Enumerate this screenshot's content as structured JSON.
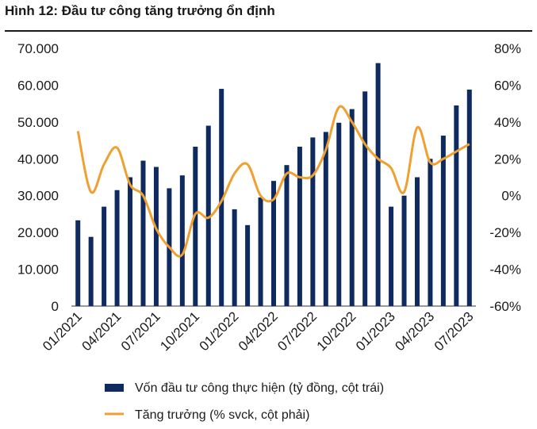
{
  "title": "Hình 12: Đầu tư công tăng trưởng ổn định",
  "chart_data": {
    "type": "bar",
    "x": [
      "01/2021",
      "02/2021",
      "03/2021",
      "04/2021",
      "05/2021",
      "06/2021",
      "07/2021",
      "08/2021",
      "09/2021",
      "10/2021",
      "11/2021",
      "12/2021",
      "01/2022",
      "02/2022",
      "03/2022",
      "04/2022",
      "05/2022",
      "06/2022",
      "07/2022",
      "08/2022",
      "09/2022",
      "10/2022",
      "11/2022",
      "12/2022",
      "01/2023",
      "02/2023",
      "03/2023",
      "04/2023",
      "05/2023",
      "06/2023",
      "07/2023"
    ],
    "x_tick_labels": [
      "01/2021",
      "04/2021",
      "07/2021",
      "10/2021",
      "01/2022",
      "04/2022",
      "07/2022",
      "10/2022",
      "01/2023",
      "04/2023",
      "07/2023"
    ],
    "y_left_ticks": [
      "0",
      "10.000",
      "20.000",
      "30.000",
      "40.000",
      "50.000",
      "60.000",
      "70.000"
    ],
    "y_right_ticks": [
      "-60%",
      "-40%",
      "-20%",
      "0%",
      "20%",
      "40%",
      "60%",
      "80%"
    ],
    "ylim_left": [
      0,
      70000
    ],
    "ylim_right": [
      -60,
      80
    ],
    "series": [
      {
        "name": "Vốn đầu tư công thực hiện (tỷ đồng, cột trái)",
        "type": "bar",
        "axis": "left",
        "color": "#0e2a5e",
        "values": [
          23300,
          18800,
          27000,
          31500,
          35000,
          39500,
          37800,
          32000,
          35500,
          43300,
          49000,
          59000,
          26300,
          22000,
          29500,
          34000,
          38300,
          43300,
          45800,
          47300,
          49800,
          53500,
          58300,
          66000,
          27000,
          30000,
          35000,
          40000,
          46300,
          54500,
          58800
        ]
      },
      {
        "name": "Tăng trưởng (% svck, cột phải)",
        "type": "line",
        "axis": "right",
        "color": "#f0a030",
        "values": [
          35,
          2,
          17,
          26,
          6,
          0,
          -18,
          -28,
          -32,
          -10,
          -12,
          -3,
          12,
          17,
          0,
          -2,
          12,
          10,
          11,
          25,
          48,
          40,
          28,
          20,
          15,
          2,
          37,
          18,
          20,
          24,
          28
        ]
      }
    ],
    "grid": false,
    "legend_position": "bottom"
  }
}
